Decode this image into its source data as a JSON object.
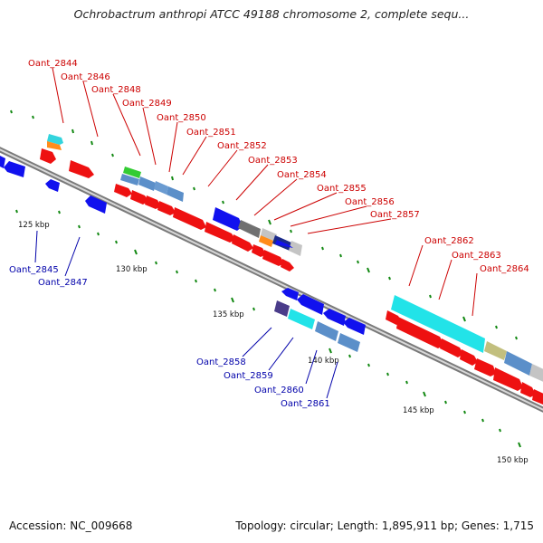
{
  "title": "Ochrobactrum anthropi ATCC 49188 chromosome 2, complete sequ...",
  "footer": {
    "accession": "Accession: NC_009668",
    "stats": "Topology: circular; Length: 1,895,911 bp; Genes: 1,715"
  },
  "colors": {
    "forward_label": "#cc0000",
    "reverse_label": "#0000aa",
    "backbone": "#888888",
    "tick": "#118811"
  },
  "scale_labels": [
    "125 kbp",
    "130 kbp",
    "135 kbp",
    "140 kbp",
    "145 kbp",
    "150 kbp"
  ],
  "forward_genes": [
    "Oant_2844",
    "Oant_2846",
    "Oant_2848",
    "Oant_2849",
    "Oant_2850",
    "Oant_2851",
    "Oant_2852",
    "Oant_2853",
    "Oant_2854",
    "Oant_2855",
    "Oant_2856",
    "Oant_2857",
    "Oant_2862",
    "Oant_2863",
    "Oant_2864"
  ],
  "reverse_genes": [
    "Oant_2845",
    "Oant_2847",
    "Oant_2858",
    "Oant_2859",
    "Oant_2860",
    "Oant_2861"
  ]
}
